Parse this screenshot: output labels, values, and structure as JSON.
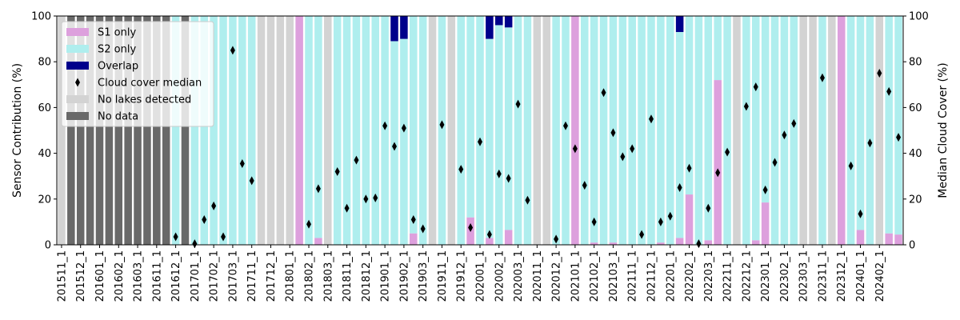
{
  "chart_data": {
    "type": "bar",
    "y_left_label": "Sensor Contribution (%)",
    "y_right_label": "Median Cloud Cover (%)",
    "ylim_left": [
      0,
      100
    ],
    "ylim_right": [
      0,
      100
    ],
    "y_ticks": [
      "0",
      "20",
      "40",
      "60",
      "80",
      "100"
    ],
    "legend_position": "top-left",
    "legend": [
      {
        "key": "s1",
        "label": "S1 only"
      },
      {
        "key": "s2",
        "label": "S2 only"
      },
      {
        "key": "overlap",
        "label": "Overlap"
      },
      {
        "key": "cloud",
        "label": "Cloud cover median"
      },
      {
        "key": "nolakes",
        "label": "No lakes detected"
      },
      {
        "key": "nodata",
        "label": "No data"
      }
    ],
    "colors": {
      "s1": "#dda0dd",
      "s2": "#afeeee",
      "overlap": "#00008b",
      "cloud": "#000000",
      "nolakes": "#d3d3d3",
      "nodata": "#696969"
    },
    "tick_labels": [
      "201511_1",
      "201512_1",
      "201601_1",
      "201602_1",
      "201603_1",
      "201611_1",
      "201612_1",
      "201701_1",
      "201702_1",
      "201703_1",
      "201711_1",
      "201712_1",
      "201801_1",
      "201802_1",
      "201803_1",
      "201811_1",
      "201812_1",
      "201901_1",
      "201902_1",
      "201903_1",
      "201911_1",
      "201912_1",
      "202001_1",
      "202002_1",
      "202003_1",
      "202011_1",
      "202012_1",
      "202101_1",
      "202102_1",
      "202103_1",
      "202111_1",
      "202112_1",
      "202201_1",
      "202202_1",
      "202203_1",
      "202211_1",
      "202212_1",
      "202301_1",
      "202302_1",
      "202303_1",
      "202311_1",
      "202312_1",
      "202401_1",
      "202402_1"
    ],
    "periods": [
      {
        "status": "nolakes"
      },
      {
        "status": "nodata"
      },
      {
        "status": "nodata"
      },
      {
        "status": "nodata"
      },
      {
        "status": "nodata"
      },
      {
        "status": "nodata"
      },
      {
        "status": "nodata"
      },
      {
        "status": "nodata"
      },
      {
        "status": "nodata"
      },
      {
        "status": "nodata"
      },
      {
        "status": "nodata"
      },
      {
        "status": "nodata"
      },
      {
        "status": "data",
        "s1": 0,
        "overlap": 0,
        "cloud": 3.5
      },
      {
        "status": "nodata"
      },
      {
        "status": "data",
        "s1": 0,
        "overlap": 0,
        "cloud": 0.5
      },
      {
        "status": "data",
        "s1": 0,
        "overlap": 0,
        "cloud": 11
      },
      {
        "status": "data",
        "s1": 0,
        "overlap": 0,
        "cloud": 17
      },
      {
        "status": "data",
        "s1": 0,
        "overlap": 0,
        "cloud": 3.5
      },
      {
        "status": "data",
        "s1": 0,
        "overlap": 0,
        "cloud": 85
      },
      {
        "status": "data",
        "s1": 0,
        "overlap": 0,
        "cloud": 35.5
      },
      {
        "status": "data",
        "s1": 0,
        "overlap": 0,
        "cloud": 28
      },
      {
        "status": "nolakes"
      },
      {
        "status": "nolakes"
      },
      {
        "status": "nolakes"
      },
      {
        "status": "nolakes"
      },
      {
        "status": "data",
        "s1": 100,
        "overlap": 0
      },
      {
        "status": "data",
        "s1": 0,
        "overlap": 0,
        "cloud": 9
      },
      {
        "status": "data",
        "s1": 3,
        "overlap": 0,
        "cloud": 24.5
      },
      {
        "status": "nolakes"
      },
      {
        "status": "data",
        "s1": 0,
        "overlap": 0,
        "cloud": 32
      },
      {
        "status": "data",
        "s1": 0,
        "overlap": 0,
        "cloud": 16
      },
      {
        "status": "data",
        "s1": 0,
        "overlap": 0,
        "cloud": 37
      },
      {
        "status": "data",
        "s1": 0,
        "overlap": 0,
        "cloud": 20
      },
      {
        "status": "data",
        "s1": 0,
        "overlap": 0,
        "cloud": 20.5
      },
      {
        "status": "data",
        "s1": 0,
        "overlap": 0,
        "cloud": 52
      },
      {
        "status": "data",
        "s1": 0,
        "overlap": 11,
        "cloud": 43
      },
      {
        "status": "data",
        "s1": 0,
        "overlap": 10,
        "cloud": 51
      },
      {
        "status": "data",
        "s1": 5,
        "overlap": 0,
        "cloud": 11
      },
      {
        "status": "data",
        "s1": 0,
        "overlap": 0,
        "cloud": 7
      },
      {
        "status": "nolakes"
      },
      {
        "status": "data",
        "s1": 0,
        "overlap": 0,
        "cloud": 52.5
      },
      {
        "status": "nolakes"
      },
      {
        "status": "data",
        "s1": 0,
        "overlap": 0,
        "cloud": 33
      },
      {
        "status": "data",
        "s1": 12,
        "overlap": 0,
        "cloud": 7.5
      },
      {
        "status": "data",
        "s1": 0,
        "overlap": 0,
        "cloud": 45
      },
      {
        "status": "data",
        "s1": 3,
        "overlap": 10,
        "cloud": 4.5
      },
      {
        "status": "data",
        "s1": 0,
        "overlap": 4,
        "cloud": 31
      },
      {
        "status": "data",
        "s1": 6.5,
        "overlap": 5,
        "cloud": 29
      },
      {
        "status": "data",
        "s1": 0,
        "overlap": 0,
        "cloud": 61.5
      },
      {
        "status": "data",
        "s1": 0,
        "overlap": 0,
        "cloud": 19.5
      },
      {
        "status": "nolakes"
      },
      {
        "status": "nolakes"
      },
      {
        "status": "data",
        "s1": 0,
        "overlap": 0,
        "cloud": 2.5
      },
      {
        "status": "data",
        "s1": 0,
        "overlap": 0,
        "cloud": 52
      },
      {
        "status": "data",
        "s1": 100,
        "overlap": 0,
        "cloud": 42
      },
      {
        "status": "data",
        "s1": 0,
        "overlap": 0,
        "cloud": 26
      },
      {
        "status": "data",
        "s1": 1,
        "overlap": 0,
        "cloud": 10
      },
      {
        "status": "data",
        "s1": 0,
        "overlap": 0,
        "cloud": 66.5
      },
      {
        "status": "data",
        "s1": 1,
        "overlap": 0,
        "cloud": 49
      },
      {
        "status": "data",
        "s1": 0,
        "overlap": 0,
        "cloud": 38.5
      },
      {
        "status": "data",
        "s1": 0,
        "overlap": 0,
        "cloud": 42
      },
      {
        "status": "data",
        "s1": 0,
        "overlap": 0,
        "cloud": 4.5
      },
      {
        "status": "data",
        "s1": 0,
        "overlap": 0,
        "cloud": 55
      },
      {
        "status": "data",
        "s1": 1,
        "overlap": 0,
        "cloud": 10
      },
      {
        "status": "data",
        "s1": 0,
        "overlap": 0,
        "cloud": 12.5
      },
      {
        "status": "data",
        "s1": 3,
        "overlap": 7,
        "cloud": 25
      },
      {
        "status": "data",
        "s1": 22,
        "overlap": 0,
        "cloud": 33.5
      },
      {
        "status": "data",
        "s1": 0,
        "overlap": 0,
        "cloud": 0.5
      },
      {
        "status": "data",
        "s1": 2,
        "overlap": 0,
        "cloud": 16
      },
      {
        "status": "data",
        "s1": 72,
        "overlap": 0,
        "cloud": 31.5
      },
      {
        "status": "data",
        "s1": 0,
        "overlap": 0,
        "cloud": 40.5
      },
      {
        "status": "nolakes"
      },
      {
        "status": "data",
        "s1": 0,
        "overlap": 0,
        "cloud": 60.5
      },
      {
        "status": "data",
        "s1": 2,
        "overlap": 0,
        "cloud": 69
      },
      {
        "status": "data",
        "s1": 18.5,
        "overlap": 0,
        "cloud": 24
      },
      {
        "status": "data",
        "s1": 0,
        "overlap": 0,
        "cloud": 36
      },
      {
        "status": "data",
        "s1": 0,
        "overlap": 0,
        "cloud": 48
      },
      {
        "status": "data",
        "s1": 0,
        "overlap": 0,
        "cloud": 53
      },
      {
        "status": "nolakes"
      },
      {
        "status": "nolakes"
      },
      {
        "status": "data",
        "s1": 0,
        "overlap": 0,
        "cloud": 73
      },
      {
        "status": "nolakes"
      },
      {
        "status": "data",
        "s1": 100,
        "overlap": 0
      },
      {
        "status": "data",
        "s1": 0,
        "overlap": 0,
        "cloud": 34.5
      },
      {
        "status": "data",
        "s1": 6.5,
        "overlap": 0,
        "cloud": 13.5
      },
      {
        "status": "data",
        "s1": 0,
        "overlap": 0,
        "cloud": 44.5
      },
      {
        "status": "nolakes",
        "cloud": 75
      },
      {
        "status": "data",
        "s1": 5,
        "overlap": 0,
        "cloud": 67
      },
      {
        "status": "data",
        "s1": 4.5,
        "overlap": 0,
        "cloud": 47
      }
    ]
  }
}
